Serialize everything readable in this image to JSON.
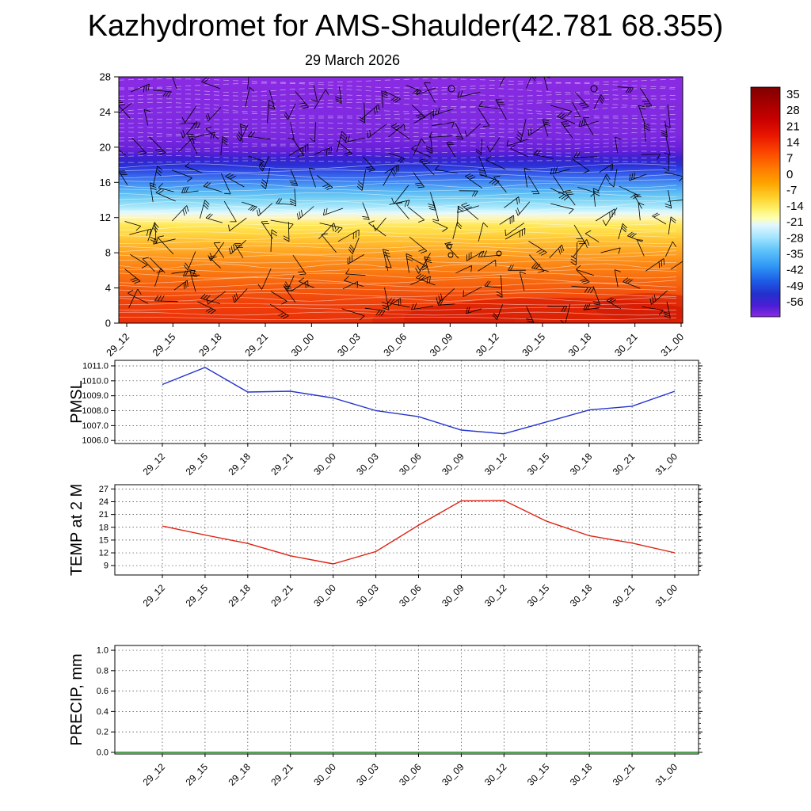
{
  "title": "Kazhydromet for AMS-Shaulder(42.781 68.355)",
  "subtitle": "29 March 2026",
  "time_labels": [
    "29_12",
    "29_15",
    "29_18",
    "29_21",
    "30_00",
    "30_03",
    "30_06",
    "30_09",
    "30_12",
    "30_15",
    "30_18",
    "30_21",
    "31_00"
  ],
  "chart_data": [
    {
      "name": "upper-air-cross-section",
      "type": "heatmap",
      "description": "Time-height temperature cross-section with wind barbs overlay",
      "x": [
        "29_12",
        "29_15",
        "29_18",
        "29_21",
        "30_00",
        "30_03",
        "30_06",
        "30_09",
        "30_12",
        "30_15",
        "30_18",
        "30_21",
        "31_00"
      ],
      "y_ticks": [
        "0",
        "4",
        "8",
        "12",
        "16",
        "20",
        "24",
        "28"
      ],
      "ylim": [
        0,
        28
      ],
      "grid": false,
      "overlay": "wind-barbs",
      "gradient_stops": [
        [
          "0",
          "#8a2be2"
        ],
        [
          "24",
          "#7b29e0"
        ],
        [
          "30",
          "#641fd8"
        ],
        [
          "33",
          "#3a20cf"
        ],
        [
          "36",
          "#2b2fd4"
        ],
        [
          "38",
          "#2e49e4"
        ],
        [
          "41",
          "#3a70ee"
        ],
        [
          "44",
          "#4897f2"
        ],
        [
          "47",
          "#5cbcf4"
        ],
        [
          "50",
          "#7dd4f4"
        ],
        [
          "53",
          "#abe9fb"
        ],
        [
          "55",
          "#dff8fd"
        ],
        [
          "57",
          "#fdf6c4"
        ],
        [
          "60",
          "#ffe95c"
        ],
        [
          "63",
          "#ffda44"
        ],
        [
          "66",
          "#ffc434"
        ],
        [
          "70",
          "#ffab26"
        ],
        [
          "74",
          "#fd921a"
        ],
        [
          "79",
          "#fa7a12"
        ],
        [
          "85",
          "#f65f0d"
        ],
        [
          "91",
          "#f1430a"
        ],
        [
          "100",
          "#ea2f08"
        ]
      ],
      "colorbar": {
        "tick_labels": [
          "35",
          "28",
          "21",
          "14",
          "7",
          "0",
          "-7",
          "-14",
          "-21",
          "-28",
          "-35",
          "-42",
          "-49",
          "-56"
        ],
        "gradient_stops": [
          [
            "0",
            "#7f0000"
          ],
          [
            "7",
            "#a50000"
          ],
          [
            "14",
            "#c80000"
          ],
          [
            "21",
            "#e81600"
          ],
          [
            "28",
            "#fb4400"
          ],
          [
            "35",
            "#ff7700"
          ],
          [
            "42",
            "#ffa500"
          ],
          [
            "48",
            "#ffd02a"
          ],
          [
            "53",
            "#fdf06a"
          ],
          [
            "57",
            "#ffffb0"
          ],
          [
            "60",
            "#e2f7ff"
          ],
          [
            "65",
            "#a8e6ff"
          ],
          [
            "71",
            "#60c4fa"
          ],
          [
            "78",
            "#2f97f5"
          ],
          [
            "84",
            "#1e5fe8"
          ],
          [
            "90",
            "#2230cc"
          ],
          [
            "95",
            "#4a1ed4"
          ],
          [
            "100",
            "#8a2be2"
          ]
        ]
      }
    },
    {
      "name": "pmsl",
      "type": "line",
      "ylabel": "PMSL",
      "color": "#2233cc",
      "grid": true,
      "legend": "none",
      "y_ticks": [
        "1011.0",
        "1010.0",
        "1009.0",
        "1008.0",
        "1007.0",
        "1006.0"
      ],
      "ylim": [
        1005.8,
        1011.37
      ],
      "minor_step": 0.2,
      "categories": [
        "29_12",
        "29_15",
        "29_18",
        "29_21",
        "30_00",
        "30_03",
        "30_06",
        "30_09",
        "30_12",
        "30_15",
        "30_18",
        "30_21",
        "31_00"
      ],
      "values": [
        1009.75,
        1010.9,
        1009.25,
        1009.3,
        1008.85,
        1008.0,
        1007.6,
        1006.7,
        1006.45,
        1007.25,
        1008.05,
        1008.3,
        1009.3
      ]
    },
    {
      "name": "temp2m",
      "type": "line",
      "ylabel": "TEMP at 2 M",
      "color": "#dd2211",
      "grid": true,
      "legend": "none",
      "y_ticks": [
        "27",
        "24",
        "21",
        "18",
        "15",
        "12",
        "9"
      ],
      "ylim": [
        6.8,
        28.0
      ],
      "minor_step": 1,
      "categories": [
        "29_12",
        "29_15",
        "29_18",
        "29_21",
        "30_00",
        "30_03",
        "30_06",
        "30_09",
        "30_12",
        "30_15",
        "30_18",
        "30_21",
        "31_00"
      ],
      "values": [
        18.3,
        16.2,
        14.2,
        11.3,
        9.4,
        12.3,
        18.5,
        24.2,
        24.3,
        19.4,
        16.0,
        14.3,
        12.0
      ]
    },
    {
      "name": "precip",
      "type": "line",
      "ylabel": "PRECIP, mm",
      "color": "#007700",
      "grid": true,
      "legend": "none",
      "y_ticks": [
        "1.0",
        "0.8",
        "0.6",
        "0.4",
        "0.2",
        "0.0"
      ],
      "ylim": [
        -0.016,
        1.047
      ],
      "minor_step": 0.05,
      "categories": [
        "29_12",
        "29_15",
        "29_18",
        "29_21",
        "30_00",
        "30_03",
        "30_06",
        "30_09",
        "30_12",
        "30_15",
        "30_18",
        "30_21",
        "31_00"
      ],
      "values": [
        0,
        0,
        0,
        0,
        0,
        0,
        0,
        0,
        0,
        0,
        0,
        0,
        0
      ]
    }
  ]
}
